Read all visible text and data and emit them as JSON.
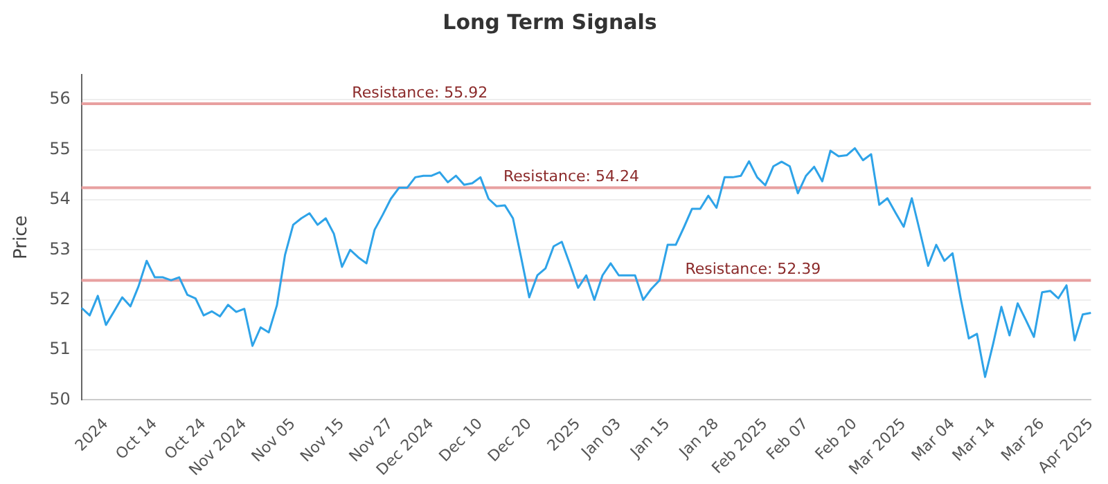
{
  "chart_data": {
    "type": "line",
    "title": "Long Term Signals",
    "ylabel": "Price",
    "categories": [
      null,
      null,
      null,
      "2024",
      null,
      null,
      null,
      null,
      null,
      "Oct 14",
      null,
      null,
      null,
      null,
      null,
      "Oct 24",
      null,
      null,
      null,
      null,
      "Nov 2024",
      null,
      null,
      null,
      null,
      null,
      "Nov 05",
      null,
      null,
      null,
      null,
      null,
      "Nov 15",
      null,
      null,
      null,
      null,
      null,
      "Nov 27",
      null,
      null,
      null,
      null,
      "Dec 2024",
      null,
      null,
      null,
      null,
      null,
      "Dec 10",
      null,
      null,
      null,
      null,
      null,
      "Dec 20",
      null,
      null,
      null,
      null,
      null,
      "2025",
      null,
      null,
      null,
      null,
      "Jan 03",
      null,
      null,
      null,
      null,
      null,
      "Jan 15",
      null,
      null,
      null,
      null,
      null,
      "Jan 28",
      null,
      null,
      null,
      null,
      null,
      "Feb 2025",
      null,
      null,
      null,
      null,
      "Feb 07",
      null,
      null,
      null,
      null,
      null,
      "Feb 20",
      null,
      null,
      null,
      null,
      null,
      "Mar 2025",
      null,
      null,
      null,
      null,
      null,
      "Mar 04",
      null,
      null,
      null,
      null,
      "Mar 14",
      null,
      null,
      null,
      null,
      null,
      "Mar 26",
      null,
      null,
      null,
      null,
      null,
      "Apr 2025"
    ],
    "series": [
      {
        "color": "#2ea3e8",
        "values": [
          51.84,
          51.69,
          52.08,
          51.5,
          51.77,
          52.05,
          51.87,
          52.27,
          52.78,
          52.45,
          52.45,
          52.39,
          52.45,
          52.1,
          52.03,
          51.69,
          51.77,
          51.67,
          51.9,
          51.76,
          51.82,
          51.08,
          51.45,
          51.35,
          51.89,
          52.9,
          53.5,
          53.63,
          53.73,
          53.5,
          53.63,
          53.32,
          52.66,
          53.0,
          52.85,
          52.73,
          53.4,
          53.7,
          54.02,
          54.24,
          54.24,
          54.45,
          54.48,
          54.48,
          54.55,
          54.35,
          54.48,
          54.3,
          54.33,
          54.45,
          54.02,
          53.87,
          53.89,
          53.63,
          52.85,
          52.05,
          52.49,
          52.63,
          53.07,
          53.16,
          52.71,
          52.24,
          52.49,
          52.0,
          52.49,
          52.73,
          52.49,
          52.49,
          52.49,
          52.0,
          52.22,
          52.39,
          53.1,
          53.1,
          53.45,
          53.82,
          53.82,
          54.08,
          53.84,
          54.45,
          54.45,
          54.48,
          54.77,
          54.45,
          54.29,
          54.67,
          54.76,
          54.67,
          54.13,
          54.48,
          54.66,
          54.37,
          54.98,
          54.87,
          54.89,
          55.03,
          54.79,
          54.91,
          53.9,
          54.03,
          53.74,
          53.46,
          54.03,
          53.36,
          52.68,
          53.1,
          52.78,
          52.93,
          52.03,
          51.23,
          51.32,
          50.46,
          51.13,
          51.86,
          51.29,
          51.93,
          51.6,
          51.26,
          52.15,
          52.18,
          52.03,
          52.29,
          51.19,
          51.71,
          51.74
        ]
      }
    ],
    "ylim": [
      50,
      56.5
    ],
    "yticks": [
      50,
      51,
      52,
      53,
      54,
      55,
      56
    ],
    "grid": "y",
    "legend": false,
    "marker": "none",
    "line_style": "solid",
    "ref_lines": [
      {
        "axis": "y",
        "value": 55.92,
        "label": "Resistance: 55.92",
        "color": "#e8a0a0"
      },
      {
        "axis": "y",
        "value": 54.24,
        "label": "Resistance: 54.24",
        "color": "#e8a0a0"
      },
      {
        "axis": "y",
        "value": 52.39,
        "label": "Resistance: 52.39",
        "color": "#e8a0a0"
      }
    ]
  }
}
